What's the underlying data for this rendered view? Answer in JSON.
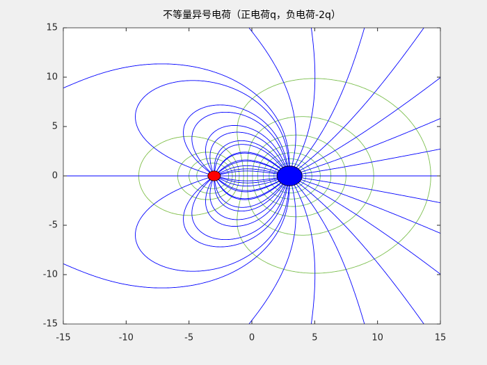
{
  "chart_data": {
    "type": "field",
    "title": "不等量异号电荷（正电荷q，负电荷-2q）",
    "xlim": [
      -15,
      15
    ],
    "ylim": [
      -15,
      15
    ],
    "xticks": [
      -15,
      -10,
      -5,
      0,
      5,
      10,
      15
    ],
    "yticks": [
      -15,
      -10,
      -5,
      0,
      5,
      10,
      15
    ],
    "charges": [
      {
        "x": -3,
        "y": 0,
        "q": 1,
        "color": "#ff0000"
      },
      {
        "x": 3,
        "y": 0,
        "q": -2,
        "color": "#0000ff"
      }
    ],
    "line_color": "#0000ff"
  }
}
